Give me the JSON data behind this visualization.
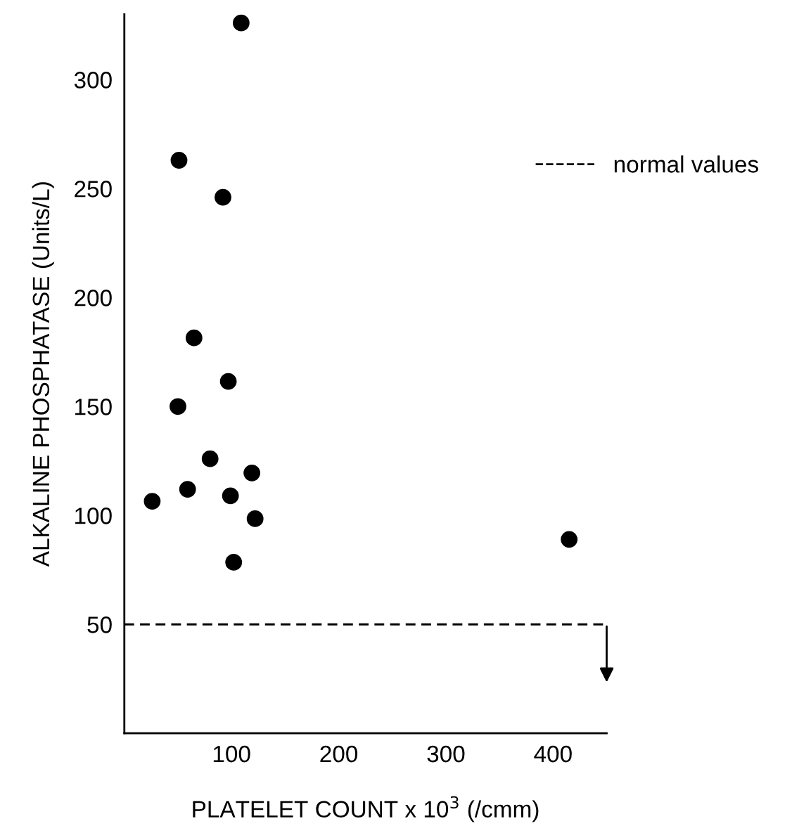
{
  "chart_data": {
    "type": "scatter",
    "xlabel": "PLATELET COUNT x 10$^{3}$ (/cmm)",
    "ylabel": "ALKALINE PHOSPHATASE (Units/L)",
    "x": [
      109,
      51,
      92,
      65,
      97,
      50,
      80,
      119,
      59,
      26,
      99,
      122,
      102,
      415
    ],
    "values": [
      326,
      263,
      246,
      181.5,
      161.5,
      150,
      126,
      119.5,
      112,
      106.5,
      109,
      98.5,
      78.5,
      89
    ],
    "color": "#000000",
    "marker": "circle",
    "xlim": [
      0,
      450
    ],
    "xticks": [
      100,
      200,
      300,
      400
    ],
    "ylim": [
      0,
      330
    ],
    "yticks": [
      50,
      100,
      150,
      200,
      250,
      300
    ],
    "grid": false,
    "legend": "top right",
    "ref_lines": [
      {
        "axis": "y",
        "value": 50,
        "label": "normal values",
        "color": "#000000",
        "line_style": "dashed"
      }
    ]
  }
}
